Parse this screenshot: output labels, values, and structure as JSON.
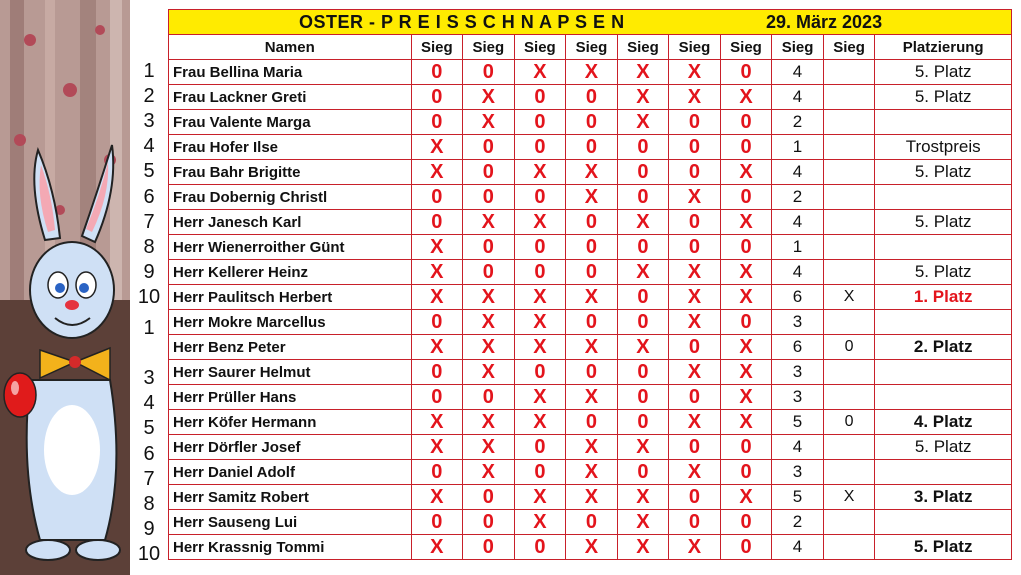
{
  "title": {
    "left": "OSTER -  P R E I S S C H N A P S E N",
    "right": "29. März 2023"
  },
  "headers": [
    "Namen",
    "Sieg",
    "Sieg",
    "Sieg",
    "Sieg",
    "Sieg",
    "Sieg",
    "Sieg",
    "Sieg",
    "Sieg",
    "Platzierung"
  ],
  "colors": {
    "mark": "#e3141c",
    "grid": "#c8202a",
    "title_bg": "#ffeb00",
    "separator": "#f3c300"
  },
  "row_numbers": [
    "1",
    "2",
    "3",
    "4",
    "5",
    "6",
    "7",
    "8",
    "9",
    "10",
    "1",
    "",
    "3",
    "4",
    "5",
    "6",
    "7",
    "8",
    "9",
    "10"
  ],
  "rows": [
    {
      "name": "Frau Bellina Maria",
      "marks": [
        "0",
        "0",
        "X",
        "X",
        "X",
        "X",
        "0"
      ],
      "count": "4",
      "extra": "",
      "place": "5. Platz",
      "style": ""
    },
    {
      "name": "Frau Lackner Greti",
      "marks": [
        "0",
        "X",
        "0",
        "0",
        "X",
        "X",
        "X"
      ],
      "count": "4",
      "extra": "",
      "place": "5. Platz",
      "style": ""
    },
    {
      "name": "Frau Valente Marga",
      "marks": [
        "0",
        "X",
        "0",
        "0",
        "X",
        "0",
        "0"
      ],
      "count": "2",
      "extra": "",
      "place": "",
      "style": ""
    },
    {
      "name": "Frau Hofer Ilse",
      "marks": [
        "X",
        "0",
        "0",
        "0",
        "0",
        "0",
        "0"
      ],
      "count": "1",
      "extra": "",
      "place": "Trostpreis",
      "style": ""
    },
    {
      "name": "Frau Bahr Brigitte",
      "marks": [
        "X",
        "0",
        "X",
        "X",
        "0",
        "0",
        "X"
      ],
      "count": "4",
      "extra": "",
      "place": "5. Platz",
      "style": ""
    },
    {
      "name": "Frau Dobernig Christl",
      "marks": [
        "0",
        "0",
        "0",
        "X",
        "0",
        "X",
        "0"
      ],
      "count": "2",
      "extra": "",
      "place": "",
      "style": ""
    },
    {
      "name": "Herr Janesch Karl",
      "marks": [
        "0",
        "X",
        "X",
        "0",
        "X",
        "0",
        "X"
      ],
      "count": "4",
      "extra": "",
      "place": "5. Platz",
      "style": ""
    },
    {
      "name": "Herr Wienerroither Günt",
      "marks": [
        "X",
        "0",
        "0",
        "0",
        "0",
        "0",
        "0"
      ],
      "count": "1",
      "extra": "",
      "place": "",
      "style": ""
    },
    {
      "name": "Herr Kellerer Heinz",
      "marks": [
        "X",
        "0",
        "0",
        "0",
        "X",
        "X",
        "X"
      ],
      "count": "4",
      "extra": "",
      "place": "5. Platz",
      "style": ""
    },
    {
      "name": "Herr Paulitsch Herbert",
      "marks": [
        "X",
        "X",
        "X",
        "X",
        "0",
        "X",
        "X"
      ],
      "count": "6",
      "extra": "X",
      "place": "1. Platz",
      "style": "red"
    },
    {
      "name": "Herr Mokre Marcellus",
      "marks": [
        "0",
        "X",
        "X",
        "0",
        "0",
        "X",
        "0"
      ],
      "count": "3",
      "extra": "",
      "place": "",
      "style": ""
    },
    {
      "name": "Herr Benz Peter",
      "marks": [
        "X",
        "X",
        "X",
        "X",
        "X",
        "0",
        "X"
      ],
      "count": "6",
      "extra": "0",
      "place": "2. Platz",
      "style": "bold"
    },
    {
      "name": "Herr  Saurer Helmut",
      "marks": [
        "0",
        "X",
        "0",
        "0",
        "0",
        "X",
        "X"
      ],
      "count": "3",
      "extra": "",
      "place": "",
      "style": ""
    },
    {
      "name": "Herr Prüller Hans",
      "marks": [
        "0",
        "0",
        "X",
        "X",
        "0",
        "0",
        "X"
      ],
      "count": "3",
      "extra": "",
      "place": "",
      "style": ""
    },
    {
      "name": "Herr Köfer Hermann",
      "marks": [
        "X",
        "X",
        "X",
        "0",
        "0",
        "X",
        "X"
      ],
      "count": "5",
      "extra": "0",
      "place": "4. Platz",
      "style": "bold"
    },
    {
      "name": "Herr Dörfler Josef",
      "marks": [
        "X",
        "X",
        "0",
        "X",
        "X",
        "0",
        "0"
      ],
      "count": "4",
      "extra": "",
      "place": "5. Platz",
      "style": ""
    },
    {
      "name": "Herr Daniel Adolf",
      "marks": [
        "0",
        "X",
        "0",
        "X",
        "0",
        "X",
        "0"
      ],
      "count": "3",
      "extra": "",
      "place": "",
      "style": ""
    },
    {
      "name": "Herr Samitz Robert",
      "marks": [
        "X",
        "0",
        "X",
        "X",
        "X",
        "0",
        "X"
      ],
      "count": "5",
      "extra": "X",
      "place": "3. Platz",
      "style": "bold"
    },
    {
      "name": "Herr Sauseng Lui",
      "marks": [
        "0",
        "0",
        "X",
        "0",
        "X",
        "0",
        "0"
      ],
      "count": "2",
      "extra": "",
      "place": "",
      "style": ""
    },
    {
      "name": "Herr Krassnig Tommi",
      "marks": [
        "X",
        "0",
        "0",
        "X",
        "X",
        "X",
        "0"
      ],
      "count": "4",
      "extra": "",
      "place": "5. Platz",
      "style": "bold"
    }
  ]
}
